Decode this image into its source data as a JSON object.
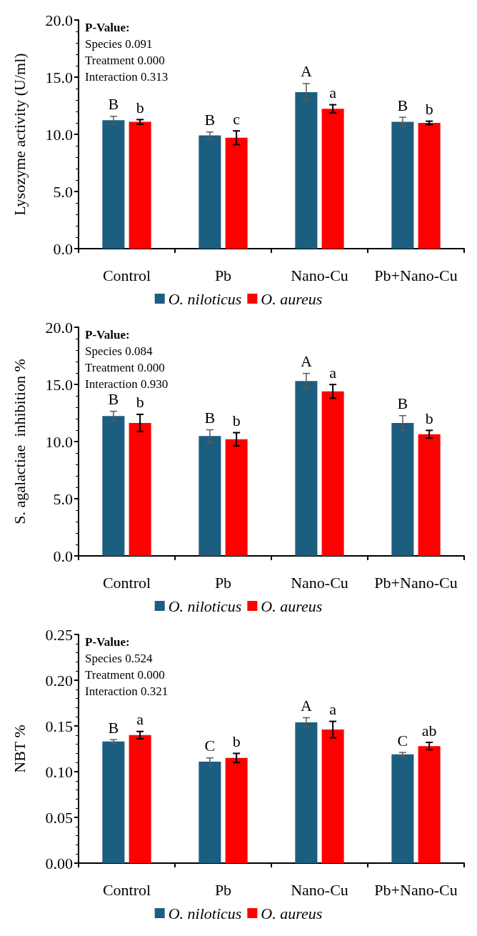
{
  "chart_data": [
    {
      "type": "bar",
      "ylabel": "Lysozyme activity (U/ml)",
      "categories": [
        "Control",
        "Pb",
        "Nano-Cu",
        "Pb+Nano-Cu"
      ],
      "series": [
        {
          "name": "O. niloticus",
          "color": "#1b5e80",
          "values": [
            11.23,
            9.9,
            13.69,
            11.09
          ],
          "errors": [
            0.35,
            0.3,
            0.75,
            0.4
          ],
          "value_labels": [
            "B",
            "B",
            "A",
            "B"
          ]
        },
        {
          "name": "O. aureus",
          "color": "#ff0000",
          "values": [
            11.09,
            9.7,
            12.24,
            11.0
          ],
          "errors": [
            0.2,
            0.6,
            0.35,
            0.15
          ],
          "value_labels": [
            "b",
            "c",
            "a",
            "b"
          ]
        }
      ],
      "ylim": [
        0,
        20
      ],
      "yticks": [
        {
          "value": 0,
          "label": "0.0"
        },
        {
          "value": 5,
          "label": "5.0"
        },
        {
          "value": 10,
          "label": "10.0"
        },
        {
          "value": 15,
          "label": "15.0"
        },
        {
          "value": 20,
          "label": "20.0"
        }
      ],
      "annotations": [
        "P-Value:",
        "Species 0.091",
        "Treatment 0.000",
        "Interaction 0.313"
      ],
      "legend": "bottom",
      "grid": false
    },
    {
      "type": "bar",
      "ylabel": "S. agalactiae  inhibition %",
      "categories": [
        "Control",
        "Pb",
        "Nano-Cu",
        "Pb+Nano-Cu"
      ],
      "series": [
        {
          "name": "O. niloticus",
          "color": "#1b5e80",
          "values": [
            12.23,
            10.48,
            15.29,
            11.63
          ],
          "errors": [
            0.42,
            0.55,
            0.67,
            0.64
          ],
          "value_labels": [
            "B",
            "B",
            "A",
            "B"
          ]
        },
        {
          "name": "O. aureus",
          "color": "#ff0000",
          "values": [
            11.63,
            10.2,
            14.39,
            10.64
          ],
          "errors": [
            0.75,
            0.58,
            0.6,
            0.34
          ],
          "value_labels": [
            "b",
            "b",
            "a",
            "b"
          ]
        }
      ],
      "ylim": [
        0,
        20
      ],
      "yticks": [
        {
          "value": 0,
          "label": "0.0"
        },
        {
          "value": 5,
          "label": "5.0"
        },
        {
          "value": 10,
          "label": "10.0"
        },
        {
          "value": 15,
          "label": "15.0"
        },
        {
          "value": 20,
          "label": "20.0"
        }
      ],
      "annotations": [
        "P-Value:",
        "Species 0.084",
        "Treatment 0.000",
        "Interaction 0.930"
      ],
      "legend": "bottom",
      "grid": false
    },
    {
      "type": "bar",
      "ylabel": "NBT %",
      "categories": [
        "Control",
        "Pb",
        "Nano-Cu",
        "Pb+Nano-Cu"
      ],
      "series": [
        {
          "name": "O. niloticus",
          "color": "#1b5e80",
          "values": [
            0.133,
            0.111,
            0.154,
            0.119
          ],
          "errors": [
            0.002,
            0.004,
            0.005,
            0.002
          ],
          "value_labels": [
            "B",
            "C",
            "A",
            "C"
          ]
        },
        {
          "name": "O. aureus",
          "color": "#ff0000",
          "values": [
            0.14,
            0.115,
            0.146,
            0.128
          ],
          "errors": [
            0.004,
            0.005,
            0.009,
            0.004
          ],
          "value_labels": [
            "a",
            "b",
            "a",
            "ab"
          ]
        }
      ],
      "ylim": [
        0,
        0.25
      ],
      "yticks": [
        {
          "value": 0,
          "label": "0.00"
        },
        {
          "value": 0.05,
          "label": "0.05"
        },
        {
          "value": 0.1,
          "label": "0.10"
        },
        {
          "value": 0.15,
          "label": "0.15"
        },
        {
          "value": 0.2,
          "label": "0.20"
        },
        {
          "value": 0.25,
          "label": "0.25"
        }
      ],
      "annotations": [
        "P-Value:",
        "Species 0.524",
        "Treatment 0.000",
        "Interaction 0.321"
      ],
      "legend": "bottom",
      "grid": false
    }
  ]
}
